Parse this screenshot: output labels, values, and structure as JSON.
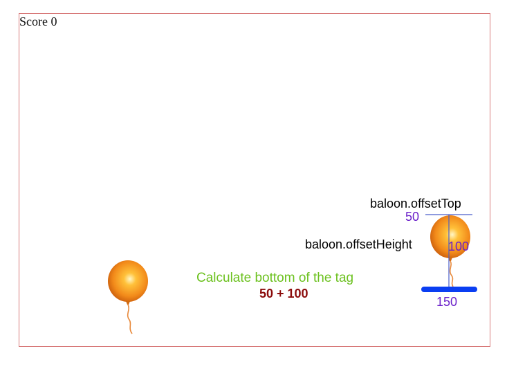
{
  "hud": {
    "score_text": "Score 0"
  },
  "balloons": [
    {
      "name": "balloon-left",
      "color": "#f28a1a"
    },
    {
      "name": "balloon-right",
      "color": "#f28a1a"
    }
  ],
  "annotation": {
    "offset_top_label": "baloon.offsetTop",
    "offset_top_value": "50",
    "offset_height_label": "baloon.offsetHeight",
    "offset_height_value": "100",
    "bottom_value": "150",
    "caption": "Calculate bottom of the tag",
    "formula": "50 + 100"
  },
  "colors": {
    "frame_border": "#d87a7a",
    "balloon": "#f28a1a",
    "value_text": "#6a1fc9",
    "caption_text": "#6cc11f",
    "formula_text": "#8b0b0b",
    "guide_line": "#4a5ec9",
    "bottom_bar": "#0a3ef2"
  }
}
